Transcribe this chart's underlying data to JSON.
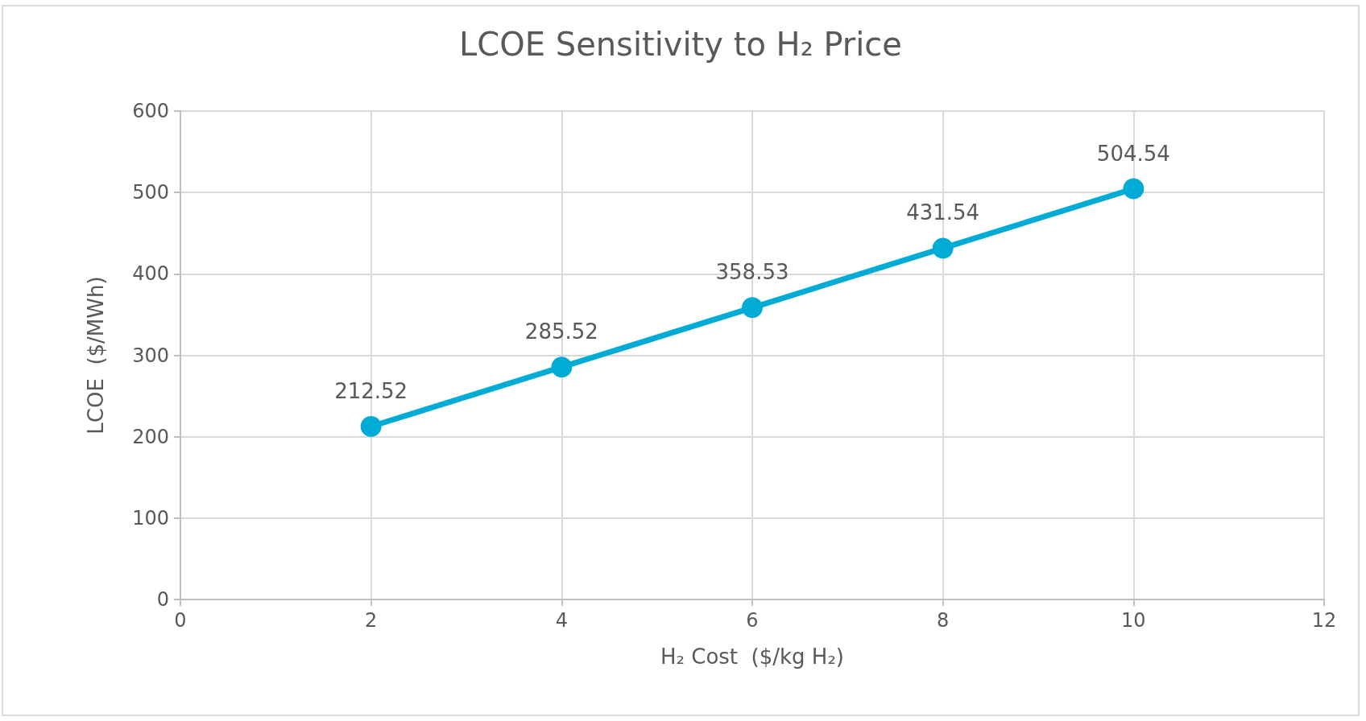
{
  "chart_data": {
    "type": "line",
    "title": "LCOE Sensitivity to H₂ Price",
    "xlabel": "H₂ Cost  ($/kg H₂)",
    "ylabel": "LCOE  ($/MWh)",
    "x": [
      2,
      4,
      6,
      8,
      10
    ],
    "series": [
      {
        "color": "#00acd6",
        "values": [
          212.52,
          285.52,
          358.53,
          431.54,
          504.54
        ]
      }
    ],
    "xlim": [
      0,
      12
    ],
    "xticks": [
      0,
      2,
      4,
      6,
      8,
      10,
      12
    ],
    "ylim": [
      0,
      600
    ],
    "yticks": [
      0,
      100,
      200,
      300,
      400,
      500,
      600
    ],
    "grid": true,
    "marker": "circle",
    "line_style": "solid",
    "data_labels": true
  }
}
